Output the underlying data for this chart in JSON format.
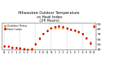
{
  "title": "Milwaukee Outdoor Temperature\nvs Heat Index\n(24 Hours)",
  "title_fontsize": 3.8,
  "background_color": "#ffffff",
  "plot_bg_color": "#ffffff",
  "grid_color": "#999999",
  "ylim": [
    39,
    92
  ],
  "yticks": [
    40,
    50,
    60,
    70,
    80,
    90
  ],
  "ytick_fontsize": 3.2,
  "xtick_fontsize": 2.5,
  "hours": [
    0,
    1,
    2,
    3,
    4,
    5,
    6,
    7,
    8,
    9,
    10,
    11,
    12,
    13,
    14,
    15,
    16,
    17,
    18,
    19,
    20,
    21,
    22,
    23
  ],
  "x_labels": [
    "12",
    "1",
    "2",
    "3",
    "4",
    "5",
    "6",
    "7",
    "8",
    "9",
    "10",
    "11",
    "12",
    "1",
    "2",
    "3",
    "4",
    "5",
    "6",
    "7",
    "8",
    "9",
    "10",
    "11"
  ],
  "temp": [
    48,
    47,
    45,
    44,
    43,
    42,
    41,
    42,
    52,
    63,
    72,
    78,
    82,
    83,
    84,
    83,
    81,
    79,
    77,
    74,
    70,
    62,
    55,
    88
  ],
  "heat_index": [
    47,
    46,
    44,
    43,
    42,
    41,
    40,
    41,
    51,
    62,
    71,
    77,
    83,
    85,
    86,
    85,
    82,
    80,
    78,
    75,
    71,
    63,
    52,
    85
  ],
  "temp_color": "#ff8800",
  "heat_color": "#cc0000",
  "marker_size": 1.0,
  "vgrid_positions": [
    0,
    4,
    8,
    12,
    16,
    20
  ],
  "legend_labels": [
    "Outdoor Temp",
    "Heat Index"
  ],
  "legend_fontsize": 2.8
}
